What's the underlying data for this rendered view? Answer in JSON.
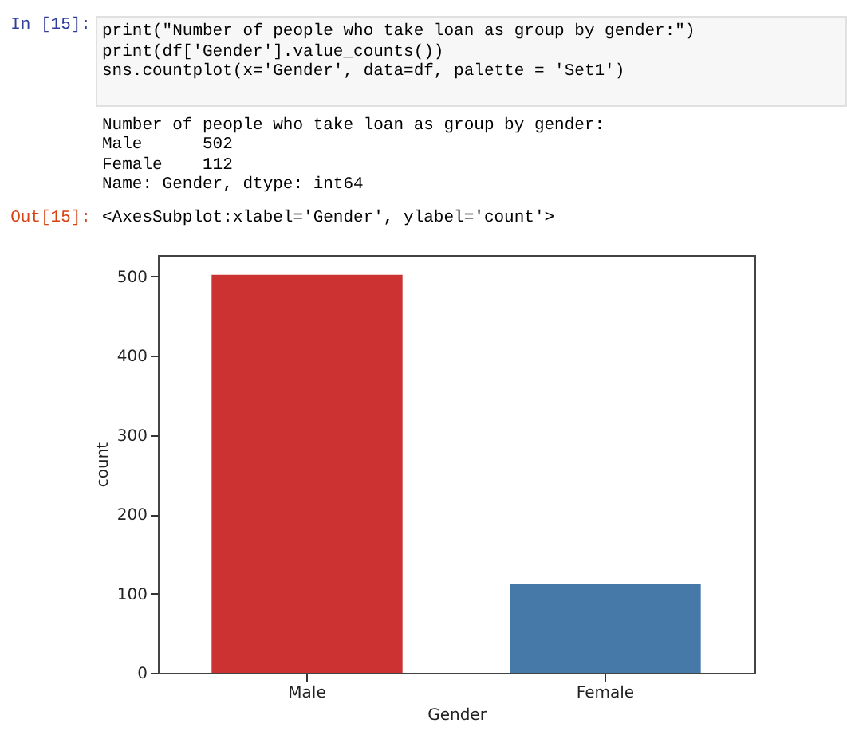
{
  "chart_data": {
    "type": "bar",
    "annotations": [
      "In [15]:",
      "print(\"Number of people who take loan as group by gender:\")",
      "print(df['Gender'].value_counts())",
      "sns.countplot(x='Gender', data=df, palette = 'Set1')",
      "Number of people who take loan as group by gender:",
      "Male      502",
      "Female    112",
      "Name: Gender, dtype: int64",
      "Out[15]:",
      "<AxesSubplot:xlabel='Gender', ylabel='count'>"
    ],
    "xlabel": "Gender",
    "ylabel": "count",
    "categories": [
      "Male",
      "Female"
    ],
    "values": [
      502,
      112
    ],
    "colors": [
      "#cc3232",
      "#4779a8"
    ],
    "ylim": [
      0,
      527
    ],
    "yticks": [
      0,
      100,
      200,
      300,
      400,
      500
    ],
    "grid": false,
    "legend": false
  }
}
